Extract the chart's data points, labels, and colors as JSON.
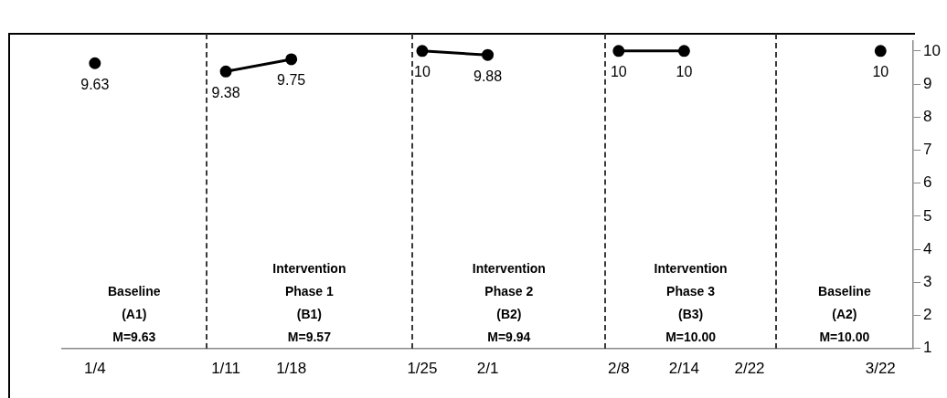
{
  "chart_data": {
    "type": "line",
    "categories": [
      "1/4",
      null,
      "1/11",
      "1/18",
      null,
      "1/25",
      "2/1",
      null,
      "2/8",
      "2/14",
      "2/22",
      null,
      "3/22"
    ],
    "series": [
      {
        "color": "#000000",
        "values": [
          9.63,
          null,
          null,
          null,
          null,
          null,
          null,
          null,
          null,
          null,
          null,
          null,
          null
        ]
      },
      {
        "color": "#000000",
        "values": [
          null,
          null,
          9.38,
          9.75,
          null,
          null,
          null,
          null,
          null,
          null,
          null,
          null,
          null
        ]
      },
      {
        "color": "#000000",
        "values": [
          null,
          null,
          null,
          null,
          null,
          10,
          9.88,
          null,
          null,
          null,
          null,
          null,
          null
        ]
      },
      {
        "color": "#000000",
        "values": [
          null,
          null,
          null,
          null,
          null,
          null,
          null,
          null,
          10,
          10,
          null,
          null,
          null
        ]
      },
      {
        "color": "#000000",
        "values": [
          null,
          null,
          null,
          null,
          null,
          null,
          null,
          null,
          null,
          null,
          null,
          null,
          10
        ]
      }
    ],
    "ylim": [
      1,
      10.3
    ],
    "yticks": [
      1,
      2,
      3,
      4,
      5,
      6,
      7,
      8,
      9,
      10
    ],
    "grid": false,
    "legend": false,
    "marker": "circle",
    "line_style": "solid",
    "data_labels": true,
    "annotations": [
      "Baseline\n(A1)\nM=9.63",
      "Intervention\nPhase 1\n(B1)\nM=9.57",
      "Intervention\nPhase 2\n(B2)\nM=9.94",
      "Intervention\nPhase 3\n(B3)\nM=10.00",
      "Baseline\n(A2)\nM=10.00"
    ]
  }
}
